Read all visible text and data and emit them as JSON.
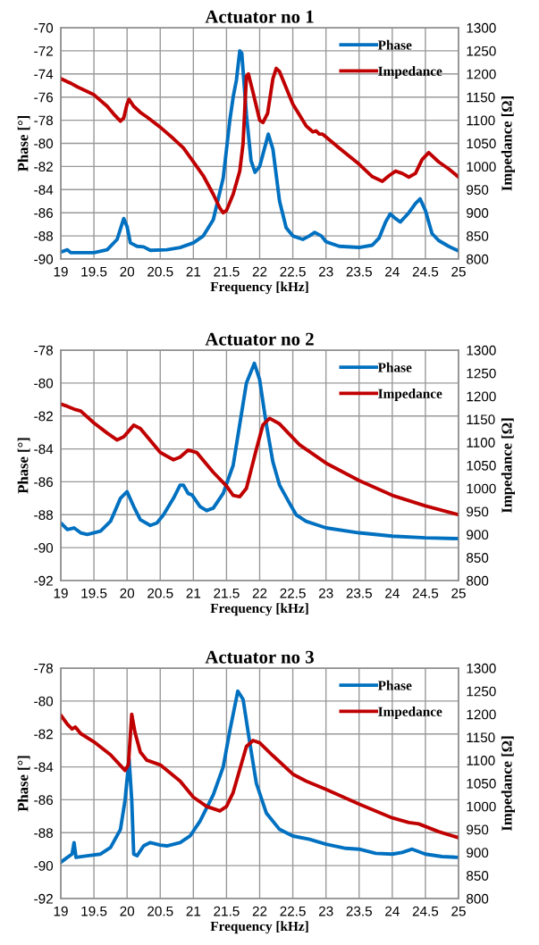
{
  "chart_data": [
    {
      "type": "line",
      "title": "Actuator no 1",
      "xlabel": "Frequency [kHz]",
      "ylabel": "Phase [°]",
      "y2label": "Impedance [Ω]",
      "xlim": [
        19,
        25
      ],
      "xticks": [
        19,
        19.5,
        20,
        20.5,
        21,
        21.5,
        22,
        22.5,
        23,
        23.5,
        24,
        24.5,
        25
      ],
      "ylim": [
        -90,
        -70
      ],
      "yticks": [
        -90,
        -88,
        -86,
        -84,
        -82,
        -80,
        -78,
        -76,
        -74,
        -72,
        -70
      ],
      "y2lim": [
        800,
        1300
      ],
      "y2ticks": [
        800,
        850,
        900,
        950,
        1000,
        1050,
        1100,
        1150,
        1200,
        1250,
        1300
      ],
      "grid": true,
      "legend": "top right",
      "line_style": "solid",
      "marker": "none",
      "series": [
        {
          "name": "Phase",
          "color": "#0070c0",
          "x": [
            19.0,
            19.1,
            19.15,
            19.5,
            19.7,
            19.85,
            19.95,
            20.0,
            20.05,
            20.15,
            20.25,
            20.35,
            20.6,
            20.8,
            21.0,
            21.15,
            21.3,
            21.45,
            21.55,
            21.6,
            21.65,
            21.7,
            21.73,
            21.8,
            21.87,
            21.93,
            22.0,
            22.07,
            22.13,
            22.2,
            22.3,
            22.4,
            22.5,
            22.65,
            22.75,
            22.83,
            22.93,
            23.0,
            23.2,
            23.5,
            23.7,
            23.8,
            23.9,
            23.97,
            24.05,
            24.12,
            24.25,
            24.35,
            24.42,
            24.5,
            24.6,
            24.7,
            24.85,
            25.0
          ],
          "values": [
            -89.4,
            -89.2,
            -89.45,
            -89.45,
            -89.2,
            -88.3,
            -86.5,
            -87.2,
            -88.6,
            -88.9,
            -88.95,
            -89.25,
            -89.2,
            -89.0,
            -88.6,
            -88.0,
            -86.6,
            -83.0,
            -78.0,
            -76.0,
            -74.5,
            -72.0,
            -72.2,
            -77.5,
            -81.5,
            -82.5,
            -82.0,
            -80.5,
            -79.2,
            -80.5,
            -85.0,
            -87.3,
            -88.0,
            -88.3,
            -88.0,
            -87.7,
            -88.0,
            -88.5,
            -88.9,
            -89.0,
            -88.8,
            -88.2,
            -86.8,
            -86.1,
            -86.5,
            -86.8,
            -86.0,
            -85.2,
            -84.8,
            -85.8,
            -87.8,
            -88.4,
            -88.9,
            -89.3
          ]
        },
        {
          "name": "Impedance",
          "color": "#c00000",
          "axis": "y2",
          "x": [
            19.0,
            19.1,
            19.15,
            19.25,
            19.5,
            19.7,
            19.8,
            19.9,
            19.95,
            20.0,
            20.03,
            20.1,
            20.2,
            20.3,
            20.5,
            20.7,
            20.85,
            21.0,
            21.15,
            21.3,
            21.4,
            21.45,
            21.5,
            21.6,
            21.7,
            21.75,
            21.8,
            21.83,
            21.9,
            22.0,
            22.05,
            22.12,
            22.2,
            22.25,
            22.3,
            22.5,
            22.7,
            22.8,
            22.85,
            22.9,
            22.95,
            23.2,
            23.5,
            23.7,
            23.85,
            23.95,
            24.05,
            24.15,
            24.25,
            24.35,
            24.45,
            24.55,
            24.7,
            24.85,
            25.0
          ],
          "values": [
            1190,
            1183,
            1180,
            1172,
            1155,
            1130,
            1113,
            1098,
            1105,
            1135,
            1145,
            1130,
            1117,
            1107,
            1085,
            1060,
            1040,
            1010,
            980,
            940,
            910,
            900,
            905,
            940,
            990,
            1050,
            1195,
            1200,
            1160,
            1100,
            1095,
            1115,
            1190,
            1212,
            1205,
            1135,
            1088,
            1075,
            1077,
            1070,
            1070,
            1040,
            1005,
            978,
            968,
            980,
            990,
            985,
            977,
            985,
            1015,
            1030,
            1010,
            995,
            977
          ]
        }
      ]
    },
    {
      "type": "line",
      "title": "Actuator no 2",
      "xlabel": "Frequency [kHz]",
      "ylabel": "Phase [°]",
      "y2label": "Impedance [Ω]",
      "xlim": [
        19,
        25
      ],
      "xticks": [
        19,
        19.5,
        20,
        20.5,
        21,
        21.5,
        22,
        22.5,
        23,
        23.5,
        24,
        24.5,
        25
      ],
      "ylim": [
        -92,
        -78
      ],
      "yticks": [
        -92,
        -90,
        -88,
        -86,
        -84,
        -82,
        -80,
        -78
      ],
      "y2lim": [
        800,
        1300
      ],
      "y2ticks": [
        800,
        850,
        900,
        950,
        1000,
        1050,
        1100,
        1150,
        1200,
        1250,
        1300
      ],
      "grid": true,
      "legend": "top right",
      "line_style": "solid",
      "marker": "none",
      "series": [
        {
          "name": "Phase",
          "color": "#0070c0",
          "x": [
            19.0,
            19.1,
            19.2,
            19.3,
            19.4,
            19.6,
            19.75,
            19.9,
            20.0,
            20.1,
            20.2,
            20.35,
            20.45,
            20.55,
            20.7,
            20.8,
            20.85,
            20.92,
            20.98,
            21.1,
            21.2,
            21.3,
            21.45,
            21.6,
            21.7,
            21.8,
            21.92,
            22.0,
            22.1,
            22.2,
            22.3,
            22.45,
            22.55,
            22.7,
            23.0,
            23.5,
            24.0,
            24.5,
            25.0
          ],
          "values": [
            -88.5,
            -88.9,
            -88.8,
            -89.1,
            -89.2,
            -89.0,
            -88.4,
            -87.0,
            -86.6,
            -87.5,
            -88.3,
            -88.65,
            -88.5,
            -88.0,
            -87.0,
            -86.2,
            -86.2,
            -86.7,
            -86.8,
            -87.5,
            -87.75,
            -87.6,
            -86.7,
            -85.0,
            -82.5,
            -80.0,
            -78.8,
            -79.8,
            -82.5,
            -84.8,
            -86.2,
            -87.3,
            -88.0,
            -88.4,
            -88.8,
            -89.1,
            -89.3,
            -89.4,
            -89.45
          ]
        },
        {
          "name": "Impedance",
          "color": "#c00000",
          "axis": "y2",
          "x": [
            19.0,
            19.1,
            19.2,
            19.3,
            19.5,
            19.7,
            19.85,
            19.95,
            20.1,
            20.2,
            20.5,
            20.7,
            20.8,
            20.92,
            21.05,
            21.3,
            21.5,
            21.6,
            21.7,
            21.8,
            21.95,
            22.05,
            22.15,
            22.3,
            22.5,
            22.6,
            22.8,
            23.0,
            23.5,
            24.0,
            24.5,
            25.0
          ],
          "values": [
            1183,
            1178,
            1172,
            1168,
            1142,
            1120,
            1105,
            1112,
            1137,
            1130,
            1078,
            1062,
            1068,
            1083,
            1078,
            1035,
            1005,
            985,
            982,
            1000,
            1085,
            1138,
            1152,
            1140,
            1110,
            1095,
            1075,
            1055,
            1017,
            985,
            962,
            943
          ]
        }
      ]
    },
    {
      "type": "line",
      "title": "Actuator no 3",
      "xlabel": "Frequency [kHz]",
      "ylabel": "Phase [°]",
      "y2label": "Impedance [Ω]",
      "xlim": [
        19,
        25
      ],
      "xticks": [
        19,
        19.5,
        20,
        20.5,
        21,
        21.5,
        22,
        22.5,
        23,
        23.5,
        24,
        24.5,
        25
      ],
      "ylim": [
        -92,
        -78
      ],
      "yticks": [
        -92,
        -90,
        -88,
        -86,
        -84,
        -82,
        -80,
        -78
      ],
      "y2lim": [
        800,
        1300
      ],
      "y2ticks": [
        800,
        850,
        900,
        950,
        1000,
        1050,
        1100,
        1150,
        1200,
        1250,
        1300
      ],
      "grid": true,
      "legend": "top right",
      "line_style": "solid",
      "marker": "none",
      "series": [
        {
          "name": "Phase",
          "color": "#0070c0",
          "x": [
            19.0,
            19.1,
            19.17,
            19.2,
            19.23,
            19.4,
            19.6,
            19.75,
            19.9,
            19.97,
            20.03,
            20.07,
            20.1,
            20.15,
            20.25,
            20.35,
            20.5,
            20.6,
            20.8,
            20.95,
            21.1,
            21.3,
            21.45,
            21.55,
            21.67,
            21.75,
            21.85,
            21.95,
            22.1,
            22.3,
            22.5,
            22.75,
            23.0,
            23.3,
            23.5,
            23.75,
            24.0,
            24.15,
            24.3,
            24.5,
            24.75,
            25.0
          ],
          "values": [
            -89.8,
            -89.5,
            -89.3,
            -88.6,
            -89.5,
            -89.4,
            -89.3,
            -88.9,
            -87.8,
            -86.0,
            -83.5,
            -86.0,
            -89.3,
            -89.4,
            -88.8,
            -88.6,
            -88.75,
            -88.8,
            -88.6,
            -88.2,
            -87.3,
            -85.7,
            -84.0,
            -81.8,
            -79.4,
            -79.9,
            -82.5,
            -85.0,
            -86.8,
            -87.8,
            -88.2,
            -88.4,
            -88.7,
            -88.95,
            -89.0,
            -89.25,
            -89.3,
            -89.2,
            -89.0,
            -89.3,
            -89.45,
            -89.5
          ]
        },
        {
          "name": "Impedance",
          "color": "#c00000",
          "axis": "y2",
          "x": [
            19.0,
            19.1,
            19.17,
            19.22,
            19.3,
            19.5,
            19.75,
            19.97,
            20.02,
            20.07,
            20.12,
            20.2,
            20.3,
            20.5,
            20.8,
            21.0,
            21.2,
            21.4,
            21.5,
            21.6,
            21.7,
            21.8,
            21.9,
            22.0,
            22.2,
            22.5,
            22.7,
            23.0,
            23.5,
            24.0,
            24.25,
            24.4,
            24.7,
            25.0
          ],
          "values": [
            1198,
            1178,
            1168,
            1172,
            1158,
            1140,
            1112,
            1078,
            1090,
            1200,
            1160,
            1118,
            1100,
            1090,
            1055,
            1020,
            1000,
            990,
            1000,
            1030,
            1080,
            1130,
            1143,
            1138,
            1110,
            1070,
            1055,
            1037,
            1005,
            975,
            965,
            962,
            945,
            932
          ]
        }
      ]
    }
  ]
}
